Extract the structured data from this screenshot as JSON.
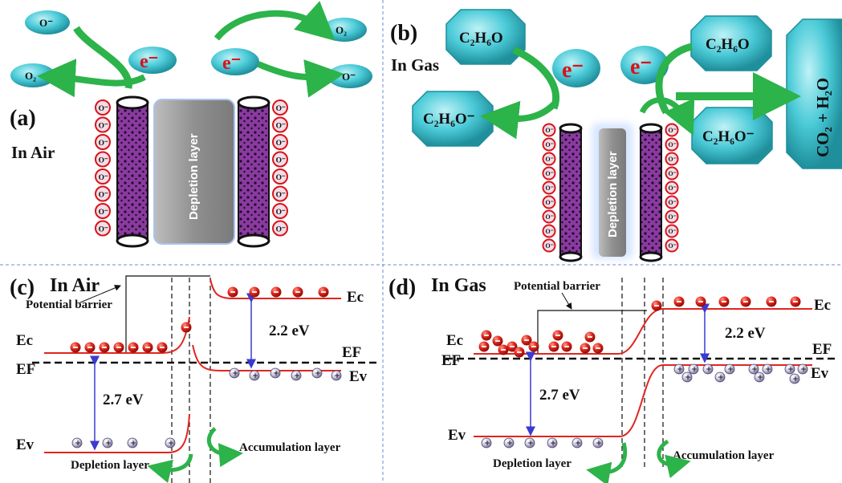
{
  "panels": {
    "a": {
      "label": "(a)",
      "condition": "In Air",
      "depletion": "Depletion layer"
    },
    "b": {
      "label": "(b)",
      "condition": "In Gas",
      "depletion": "Depletion layer"
    },
    "c": {
      "label": "(c)",
      "condition": "In Air"
    },
    "d": {
      "label": "(d)",
      "condition": "In Gas"
    }
  },
  "species": {
    "o_minus": "O⁻",
    "o2": "O₂",
    "electron": "e⁻",
    "ethanol": "C₂H₆O",
    "ethoxide": "C₂H₆O⁻",
    "products": "CO₂ + H₂O",
    "surface_ion": "O⁻",
    "hole": "+",
    "electron_dot": "–"
  },
  "band": {
    "ec": "Ec",
    "ef": "EF",
    "ev": "Ev",
    "gap_left": "2.7 eV",
    "gap_right": "2.2 eV",
    "potential_barrier": "Potential barrier",
    "depletion_layer": "Depletion layer",
    "accumulation_layer": "Accumulation layer"
  },
  "colors": {
    "cyan": "#3fc6d4",
    "purple": "#8a3aa0",
    "red_line": "#e0261f",
    "green_arrow": "#2cb34a",
    "blue_arrow": "#3a3bd0",
    "electron_red": "#d8131b",
    "gray": "#9a9a9a"
  }
}
